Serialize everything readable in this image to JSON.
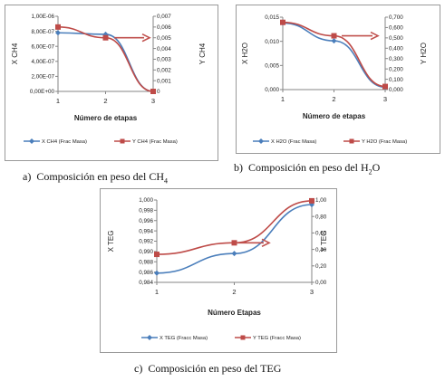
{
  "colors": {
    "x_series": "#4a7ebb",
    "y_series": "#be4b48",
    "arrow": "#c0504d",
    "axis": "#868686"
  },
  "captions": {
    "a": {
      "prefix": "a)",
      "text": "Composición en peso del CH",
      "sub": "4"
    },
    "b": {
      "prefix": "b)",
      "text": "Composición en peso del H",
      "sub": "2",
      "tail": "O"
    },
    "c": {
      "prefix": "c)",
      "text": "Composición en peso del TEG"
    }
  },
  "chart_data": [
    {
      "id": "ch4",
      "type": "line",
      "xlabel": "Número de etapas",
      "ylabel_left": "X CH4",
      "ylabel_right": "Y CH4",
      "x": [
        1,
        2,
        3
      ],
      "xlim": [
        1,
        3
      ],
      "ylim_left": [
        0,
        1e-06
      ],
      "ylim_right": [
        0,
        0.007
      ],
      "ticks_left": [
        "0,00E+00",
        "2,00E-07",
        "4,00E-07",
        "6,00E-07",
        "8,00E-07",
        "1,00E-06"
      ],
      "ticks_right": [
        "0",
        "0,001",
        "0,002",
        "0,003",
        "0,004",
        "0,005",
        "0,006",
        "0,007"
      ],
      "series": [
        {
          "name": "X CH4 (Frac Masa)",
          "axis": "left",
          "marker": "diamond",
          "values": [
            7.8e-07,
            7.6e-07,
            0
          ]
        },
        {
          "name": "Y CH4 (Frac Masa)",
          "axis": "right",
          "marker": "square",
          "values": [
            0.006,
            0.005,
            0
          ]
        }
      ],
      "legend": "bottom"
    },
    {
      "id": "h2o",
      "type": "line",
      "xlabel": "Número de etapas",
      "ylabel_left": "X H2O",
      "ylabel_right": "Y H2O",
      "x": [
        1,
        2,
        3
      ],
      "xlim": [
        1,
        3
      ],
      "ylim_left": [
        0,
        0.015
      ],
      "ylim_right": [
        0,
        0.7
      ],
      "ticks_left": [
        "0,000",
        "0,005",
        "0,010",
        "0,015"
      ],
      "ticks_right": [
        "0,000",
        "0,100",
        "0,200",
        "0,300",
        "0,400",
        "0,500",
        "0,600",
        "0,700"
      ],
      "series": [
        {
          "name": "X H2O (Frac Masa)",
          "axis": "left",
          "marker": "diamond",
          "values": [
            0.0138,
            0.0101,
            0.0005
          ]
        },
        {
          "name": "Y H2O (Frac Masa)",
          "axis": "right",
          "marker": "square",
          "values": [
            0.65,
            0.52,
            0.03
          ]
        }
      ],
      "legend": "bottom"
    },
    {
      "id": "teg",
      "type": "line",
      "xlabel": "Número Etapas",
      "ylabel_left": "X TEG",
      "ylabel_right": "Y TEG",
      "x": [
        1,
        2,
        3
      ],
      "xlim": [
        1,
        3
      ],
      "ylim_left": [
        0.984,
        1.0
      ],
      "ylim_right": [
        0,
        1.0
      ],
      "ticks_left": [
        "0,984",
        "0,986",
        "0,988",
        "0,990",
        "0,992",
        "0,994",
        "0,996",
        "0,998",
        "1,000"
      ],
      "ticks_right": [
        "0,00",
        "0,20",
        "0,40",
        "0,60",
        "0,80",
        "1,00"
      ],
      "series": [
        {
          "name": "X TEG (Fracc Masa)",
          "axis": "left",
          "marker": "diamond",
          "values": [
            0.9858,
            0.9896,
            0.9991
          ]
        },
        {
          "name": "Y TEG (Fracc Masa)",
          "axis": "right",
          "marker": "square",
          "values": [
            0.34,
            0.48,
            0.99
          ]
        }
      ],
      "legend": "bottom"
    }
  ]
}
